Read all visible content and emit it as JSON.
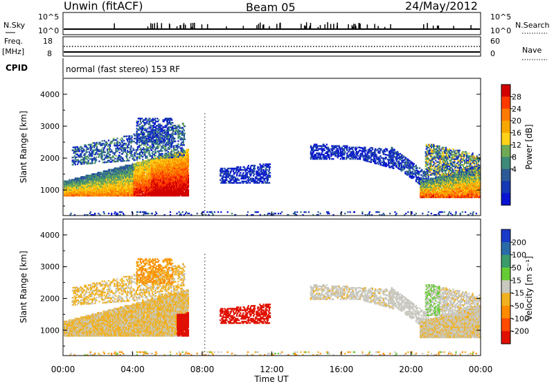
{
  "header": {
    "station": "Unwin (fitACF)",
    "beam": "Beam 05",
    "date": "24/May/2012"
  },
  "housekeeping": {
    "nsky_label": "N.Sky",
    "nsky_ticks": [
      "10^5",
      "10^0"
    ],
    "nsearch_label": "N.Search",
    "nsearch_ticks": [
      "10^5",
      "10^0"
    ],
    "freq_label": "Freq.",
    "freq_unit": "[MHz]",
    "freq_ticks": [
      "18",
      "8"
    ],
    "nave_label": "Nave",
    "nave_ticks": [
      "60",
      "0"
    ],
    "cpid_label": "CPID",
    "cpid_text": "normal (fast stereo) 153 RF"
  },
  "chart_data": [
    {
      "type": "heatmap",
      "name": "power",
      "ylabel": "Slant Range [km]",
      "xlabel": "",
      "y_ticks": [
        "4000",
        "3000",
        "2000",
        "1000"
      ],
      "ylim": [
        200,
        4500
      ],
      "colorbar": {
        "label": "Power [dB]",
        "ticks": [
          "28",
          "24",
          "20",
          "16",
          "12",
          "8",
          "4"
        ],
        "colors": [
          "#d20000",
          "#ff3a00",
          "#ff7a00",
          "#f7a800",
          "#ffd21a",
          "#6faa55",
          "#3d8a78",
          "#2d5a96",
          "#1538b4",
          "#0a14d2"
        ]
      }
    },
    {
      "type": "heatmap",
      "name": "velocity",
      "ylabel": "Slant Range [km]",
      "xlabel": "Time UT",
      "x_ticks": [
        "00:00",
        "04:00",
        "08:00",
        "12:00",
        "16:00",
        "20:00",
        "00:00"
      ],
      "y_ticks": [
        "4000",
        "3000",
        "2000",
        "1000"
      ],
      "ylim": [
        200,
        4500
      ],
      "colorbar": {
        "label": "Velocity [m s⁻¹]",
        "ticks": [
          "200",
          "100",
          "50",
          "15",
          "-15",
          "-50",
          "-100",
          "-200"
        ],
        "colors": [
          "#1a3ac8",
          "#2a6aa8",
          "#3a9a6a",
          "#66cc33",
          "#c8c8c0",
          "#f0b020",
          "#ff8a00",
          "#ff4a00",
          "#e01000"
        ]
      }
    }
  ]
}
